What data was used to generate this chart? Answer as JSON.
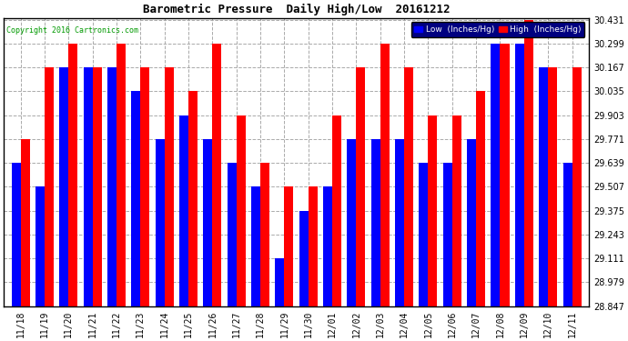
{
  "title": "Barometric Pressure  Daily High/Low  20161212",
  "copyright": "Copyright 2016 Cartronics.com",
  "legend_low": "Low  (Inches/Hg)",
  "legend_high": "High  (Inches/Hg)",
  "low_color": "#0000ff",
  "high_color": "#ff0000",
  "background_color": "#ffffff",
  "ymin": 28.847,
  "ymax": 30.431,
  "yticks": [
    30.431,
    30.299,
    30.167,
    30.035,
    29.903,
    29.771,
    29.639,
    29.507,
    29.375,
    29.243,
    29.111,
    28.979,
    28.847
  ],
  "dates": [
    "11/18",
    "11/19",
    "11/20",
    "11/21",
    "11/22",
    "11/23",
    "11/24",
    "11/25",
    "11/26",
    "11/27",
    "11/28",
    "11/29",
    "11/30",
    "12/01",
    "12/02",
    "12/03",
    "12/04",
    "12/05",
    "12/06",
    "12/07",
    "12/08",
    "12/09",
    "12/10",
    "12/11"
  ],
  "low_values": [
    29.639,
    29.507,
    30.167,
    30.167,
    30.167,
    30.035,
    29.771,
    29.903,
    29.771,
    29.639,
    29.507,
    29.111,
    29.375,
    29.507,
    29.771,
    29.771,
    29.771,
    29.639,
    29.639,
    29.771,
    30.299,
    30.299,
    30.167,
    29.639
  ],
  "high_values": [
    29.771,
    30.167,
    30.299,
    30.167,
    30.299,
    30.167,
    30.167,
    30.035,
    30.299,
    29.903,
    29.639,
    29.507,
    29.507,
    29.903,
    30.167,
    30.299,
    30.167,
    29.903,
    29.903,
    30.035,
    30.299,
    30.431,
    30.167,
    30.167
  ],
  "bar_bottom": 28.847,
  "bar_width": 0.38,
  "figwidth": 6.9,
  "figheight": 3.75,
  "dpi": 100
}
